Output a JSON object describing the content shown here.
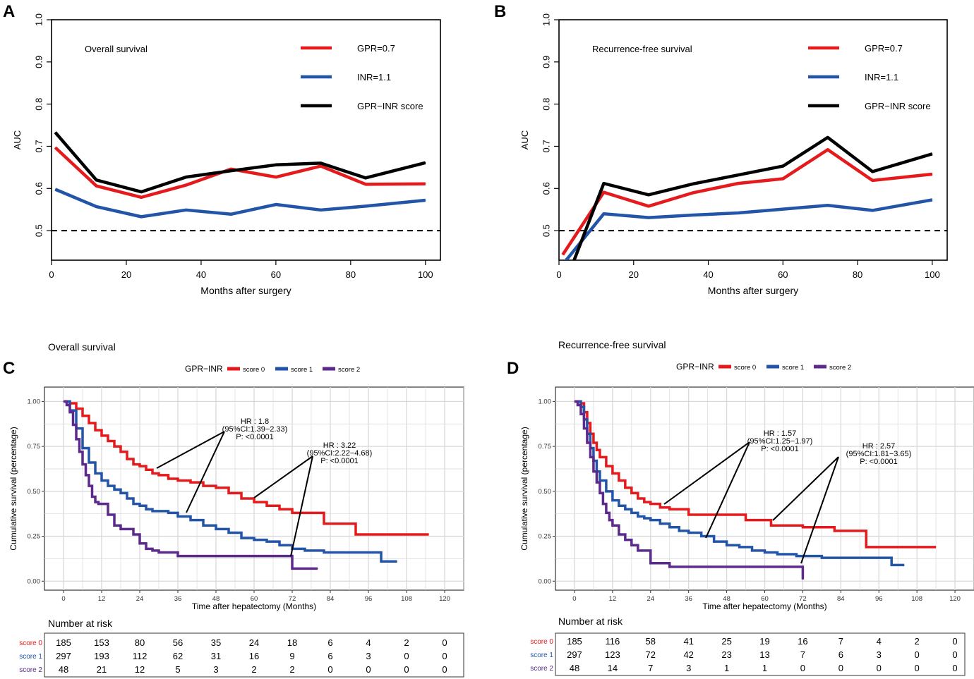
{
  "panels": {
    "A": {
      "letter": "A"
    },
    "B": {
      "letter": "B"
    },
    "C": {
      "letter": "C"
    },
    "D": {
      "letter": "D"
    }
  },
  "colors": {
    "gpr": "#e41a1c",
    "inr": "#2255a8",
    "score": "#000000",
    "s0": "#e41a1c",
    "s1": "#2255a8",
    "s2": "#5b2a8c"
  },
  "chart_data": [
    {
      "id": "A",
      "type": "line",
      "title": "Overall survival",
      "xlabel": "Months after surgery",
      "ylabel": "AUC",
      "xlim": [
        0,
        104
      ],
      "ylim": [
        0.43,
        1.0
      ],
      "xticks": [
        0,
        20,
        40,
        60,
        80,
        100
      ],
      "yticks": [
        0.5,
        0.6,
        0.7,
        0.8,
        0.9,
        1.0
      ],
      "yticklabels": [
        "0.5",
        "0.6",
        "0.7",
        "0.8",
        "0.9",
        "1.0"
      ],
      "reference_line": 0.5,
      "legend": [
        "GPR=0.7",
        "INR=1.1",
        "GPR−INR score"
      ],
      "x": [
        1,
        12,
        24,
        36,
        48,
        60,
        72,
        84,
        100
      ],
      "series": [
        {
          "name": "GPR=0.7",
          "color_key": "gpr",
          "values": [
            0.697,
            0.606,
            0.579,
            0.608,
            0.646,
            0.627,
            0.653,
            0.61,
            0.611
          ]
        },
        {
          "name": "INR=1.1",
          "color_key": "inr",
          "values": [
            0.598,
            0.557,
            0.533,
            0.549,
            0.539,
            0.562,
            0.549,
            0.558,
            0.572
          ]
        },
        {
          "name": "GPR−INR score",
          "color_key": "score",
          "values": [
            0.733,
            0.62,
            0.592,
            0.627,
            0.642,
            0.656,
            0.66,
            0.625,
            0.661
          ]
        }
      ]
    },
    {
      "id": "B",
      "type": "line",
      "title": "Recurrence-free survival",
      "xlabel": "Months after surgery",
      "ylabel": "AUC",
      "xlim": [
        0,
        104
      ],
      "ylim": [
        0.43,
        1.0
      ],
      "xticks": [
        0,
        20,
        40,
        60,
        80,
        100
      ],
      "yticks": [
        0.5,
        0.6,
        0.7,
        0.8,
        0.9,
        1.0
      ],
      "yticklabels": [
        "0.5",
        "0.6",
        "0.7",
        "0.8",
        "0.9",
        "1.0"
      ],
      "reference_line": 0.5,
      "legend": [
        "GPR=0.7",
        "INR=1.1",
        "GPR−INR score"
      ],
      "x": [
        1,
        12,
        24,
        36,
        48,
        60,
        72,
        84,
        100
      ],
      "series": [
        {
          "name": "GPR=0.7",
          "color_key": "gpr",
          "values": [
            0.443,
            0.591,
            0.558,
            0.59,
            0.612,
            0.623,
            0.692,
            0.619,
            0.634
          ]
        },
        {
          "name": "INR=1.1",
          "color_key": "inr",
          "values": [
            0.42,
            0.54,
            0.531,
            0.537,
            0.542,
            0.551,
            0.56,
            0.548,
            0.573
          ]
        },
        {
          "name": "GPR−INR score",
          "color_key": "score",
          "values": [
            0.36,
            0.612,
            0.585,
            0.611,
            0.632,
            0.653,
            0.721,
            0.64,
            0.682
          ]
        }
      ]
    },
    {
      "id": "C",
      "type": "line",
      "title": "Overall survival",
      "xlabel": "Time after hepatectomy (Months)",
      "ylabel": "Cumulative survival (percentage)",
      "legend_title": "GPR−INR",
      "legend": [
        "score 0",
        "score 1",
        "score 2"
      ],
      "xlim": [
        -6,
        126
      ],
      "ylim": [
        -0.05,
        1.08
      ],
      "xticks": [
        0,
        12,
        24,
        36,
        48,
        60,
        72,
        84,
        96,
        108,
        120
      ],
      "yticks": [
        0,
        0.25,
        0.5,
        0.75,
        1.0
      ],
      "yticklabels": [
        "0.00",
        "0.25",
        "0.50",
        "0.75",
        "1.00"
      ],
      "series": [
        {
          "name": "score 0",
          "color_key": "s0",
          "x": [
            0,
            2,
            4,
            6,
            8,
            10,
            12,
            14,
            16,
            18,
            20,
            22,
            24,
            26,
            28,
            30,
            33,
            36,
            40,
            44,
            48,
            52,
            56,
            60,
            64,
            68,
            72,
            82,
            92,
            115
          ],
          "y": [
            1.0,
            0.99,
            0.96,
            0.92,
            0.88,
            0.84,
            0.81,
            0.78,
            0.75,
            0.72,
            0.68,
            0.65,
            0.64,
            0.62,
            0.6,
            0.59,
            0.57,
            0.56,
            0.55,
            0.53,
            0.52,
            0.49,
            0.46,
            0.44,
            0.42,
            0.4,
            0.38,
            0.32,
            0.26,
            0.26
          ]
        },
        {
          "name": "score 1",
          "color_key": "s1",
          "x": [
            0,
            2,
            4,
            6,
            8,
            10,
            12,
            14,
            16,
            18,
            20,
            22,
            24,
            26,
            28,
            30,
            33,
            36,
            40,
            44,
            48,
            52,
            56,
            60,
            64,
            68,
            72,
            76,
            82,
            90,
            100,
            105
          ],
          "y": [
            1.0,
            0.95,
            0.85,
            0.74,
            0.66,
            0.6,
            0.56,
            0.53,
            0.51,
            0.49,
            0.46,
            0.43,
            0.42,
            0.4,
            0.39,
            0.39,
            0.38,
            0.36,
            0.34,
            0.31,
            0.29,
            0.27,
            0.24,
            0.23,
            0.22,
            0.2,
            0.18,
            0.17,
            0.16,
            0.16,
            0.11,
            0.11
          ]
        },
        {
          "name": "score 2",
          "color_key": "s2",
          "x": [
            0,
            1,
            2,
            3,
            4,
            5,
            6,
            7,
            8,
            9,
            10,
            11,
            12,
            14,
            16,
            18,
            20,
            22,
            24,
            26,
            28,
            30,
            33,
            36,
            42,
            48,
            60,
            72,
            80
          ],
          "y": [
            1.0,
            0.98,
            0.94,
            0.87,
            0.79,
            0.72,
            0.65,
            0.59,
            0.53,
            0.47,
            0.44,
            0.43,
            0.43,
            0.37,
            0.31,
            0.29,
            0.29,
            0.26,
            0.21,
            0.18,
            0.17,
            0.16,
            0.16,
            0.14,
            0.14,
            0.14,
            0.14,
            0.07,
            0.07
          ]
        }
      ],
      "annotations": [
        {
          "lines": [
            "HR : 1.8",
            "(95%CI:1.39−2.33)",
            "P: <0.0001"
          ]
        },
        {
          "lines": [
            "HR : 3.22",
            "(95%CI:2.22−4.68)",
            "P: <0.0001"
          ]
        }
      ],
      "risk_table": {
        "title": "Number at risk",
        "rows": [
          {
            "label": "score 0",
            "color_key": "s0",
            "values": [
              "185",
              "153",
              "80",
              "56",
              "35",
              "24",
              "18",
              "6",
              "4",
              "2",
              "0"
            ]
          },
          {
            "label": "score 1",
            "color_key": "s1",
            "values": [
              "297",
              "193",
              "112",
              "62",
              "31",
              "16",
              "9",
              "6",
              "3",
              "0",
              "0"
            ]
          },
          {
            "label": "score 2",
            "color_key": "s2",
            "values": [
              "48",
              "21",
              "12",
              "5",
              "3",
              "2",
              "2",
              "0",
              "0",
              "0",
              "0"
            ]
          }
        ]
      }
    },
    {
      "id": "D",
      "type": "line",
      "title": "Recurrence-free survival",
      "xlabel": "Time after hepatectomy (Months)",
      "ylabel": "Cumulative survival (percentage)",
      "legend_title": "GPR−INR",
      "legend": [
        "score 0",
        "score 1",
        "score 2"
      ],
      "xlim": [
        -6,
        126
      ],
      "ylim": [
        -0.05,
        1.08
      ],
      "xticks": [
        0,
        12,
        24,
        36,
        48,
        60,
        72,
        84,
        96,
        108,
        120
      ],
      "yticks": [
        0,
        0.25,
        0.5,
        0.75,
        1.0
      ],
      "yticklabels": [
        "0.00",
        "0.25",
        "0.50",
        "0.75",
        "1.00"
      ],
      "series": [
        {
          "name": "score 0",
          "color_key": "s0",
          "x": [
            0,
            2,
            3,
            4,
            5,
            6,
            7,
            8,
            10,
            12,
            14,
            16,
            18,
            20,
            22,
            24,
            27,
            30,
            36,
            48,
            54,
            62,
            72,
            82,
            90,
            92,
            114
          ],
          "y": [
            1.0,
            0.99,
            0.94,
            0.88,
            0.82,
            0.77,
            0.73,
            0.69,
            0.64,
            0.6,
            0.56,
            0.52,
            0.49,
            0.46,
            0.44,
            0.43,
            0.41,
            0.4,
            0.37,
            0.37,
            0.34,
            0.31,
            0.3,
            0.28,
            0.28,
            0.19,
            0.19
          ]
        },
        {
          "name": "score 1",
          "color_key": "s1",
          "x": [
            0,
            2,
            3,
            4,
            5,
            6,
            7,
            8,
            10,
            12,
            14,
            16,
            18,
            20,
            22,
            24,
            27,
            30,
            33,
            36,
            40,
            44,
            48,
            52,
            56,
            60,
            64,
            70,
            78,
            90,
            100,
            104
          ],
          "y": [
            1.0,
            0.97,
            0.9,
            0.82,
            0.74,
            0.67,
            0.61,
            0.56,
            0.5,
            0.45,
            0.42,
            0.4,
            0.38,
            0.36,
            0.35,
            0.34,
            0.32,
            0.3,
            0.28,
            0.27,
            0.25,
            0.22,
            0.2,
            0.19,
            0.17,
            0.16,
            0.15,
            0.14,
            0.13,
            0.13,
            0.09,
            0.09
          ]
        },
        {
          "name": "score 2",
          "color_key": "s2",
          "x": [
            0,
            1,
            2,
            3,
            4,
            5,
            6,
            7,
            8,
            9,
            10,
            11,
            12,
            14,
            16,
            18,
            20,
            24,
            30,
            36,
            48,
            60,
            72
          ],
          "y": [
            1.0,
            0.98,
            0.93,
            0.85,
            0.77,
            0.69,
            0.61,
            0.55,
            0.49,
            0.43,
            0.38,
            0.34,
            0.31,
            0.26,
            0.23,
            0.2,
            0.17,
            0.1,
            0.08,
            0.08,
            0.08,
            0.08,
            0.01
          ]
        }
      ],
      "annotations": [
        {
          "lines": [
            "HR : 1.57",
            "(95%CI:1.25−1.97)",
            "P: <0.0001"
          ]
        },
        {
          "lines": [
            "HR : 2.57",
            "(95%CI:1.81−3.65)",
            "P: <0.0001"
          ]
        }
      ],
      "risk_table": {
        "title": "Number at risk",
        "rows": [
          {
            "label": "score 0",
            "color_key": "s0",
            "values": [
              "185",
              "116",
              "58",
              "41",
              "25",
              "19",
              "16",
              "7",
              "4",
              "2",
              "0"
            ]
          },
          {
            "label": "score 1",
            "color_key": "s1",
            "values": [
              "297",
              "123",
              "72",
              "42",
              "23",
              "13",
              "7",
              "6",
              "3",
              "0",
              "0"
            ]
          },
          {
            "label": "score 2",
            "color_key": "s2",
            "values": [
              "48",
              "14",
              "7",
              "3",
              "1",
              "1",
              "0",
              "0",
              "0",
              "0",
              "0"
            ]
          }
        ]
      }
    }
  ]
}
